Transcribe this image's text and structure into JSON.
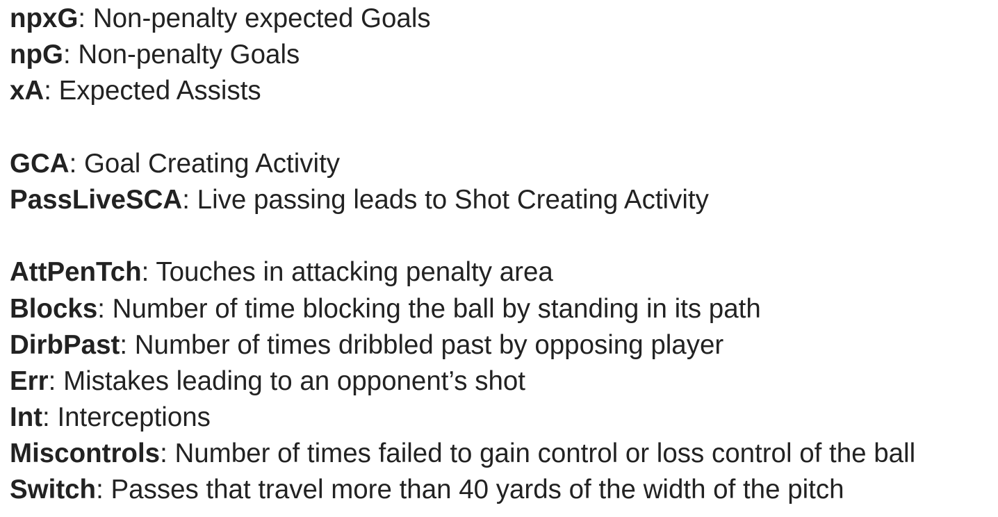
{
  "groups": [
    {
      "entries": [
        {
          "term": "npxG",
          "definition": "Non-penalty expected Goals"
        },
        {
          "term": "npG",
          "definition": "Non-penalty Goals"
        },
        {
          "term": "xA",
          "definition": "Expected Assists"
        }
      ]
    },
    {
      "entries": [
        {
          "term": "GCA",
          "definition": "Goal Creating Activity"
        },
        {
          "term": "PassLiveSCA",
          "definition": "Live passing leads to Shot Creating Activity"
        }
      ]
    },
    {
      "entries": [
        {
          "term": "AttPenTch",
          "definition": "Touches in attacking penalty area"
        },
        {
          "term": "Blocks",
          "definition": "Number of time blocking the ball by standing in its path"
        },
        {
          "term": "DirbPast",
          "definition": "Number of times dribbled past by opposing player"
        },
        {
          "term": "Err",
          "definition": "Mistakes leading to an opponent’s shot"
        },
        {
          "term": "Int",
          "definition": "Interceptions"
        },
        {
          "term": "Miscontrols",
          "definition": "Number of times failed to gain control or loss control of the ball"
        },
        {
          "term": "Switch",
          "definition": "Passes that travel more than 40 yards of the width of the pitch"
        }
      ]
    }
  ],
  "separator": ": "
}
